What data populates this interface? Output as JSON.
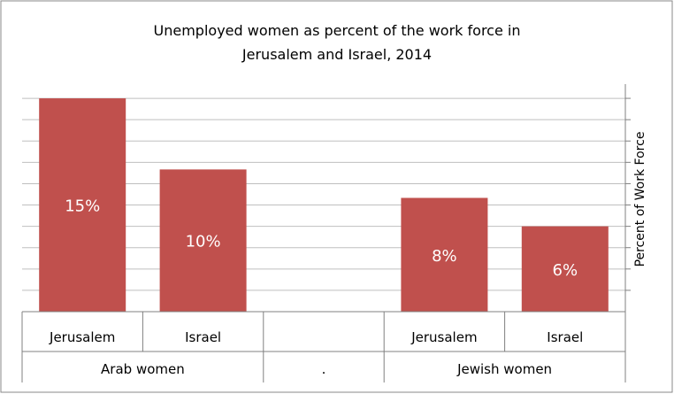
{
  "chart_data": {
    "type": "bar",
    "title_lines": [
      "Unemployed women as percent of the work force in",
      "Jerusalem and Israel, 2014"
    ],
    "ylabel": "Percent of Work Force",
    "ylim": [
      0,
      16
    ],
    "y_tick_step": 1.5,
    "y_axis_side": "right",
    "tick_labels_shown": false,
    "bar_color": "#c0504d",
    "label_color": "#ffffff",
    "bars": [
      {
        "category": "Jerusalem",
        "group": "Arab women",
        "value": 15,
        "label": "15%"
      },
      {
        "category": "Israel",
        "group": "Arab women",
        "value": 10,
        "label": "10%"
      },
      {
        "category": "",
        "group": ".",
        "value": null,
        "label": ""
      },
      {
        "category": "Jerusalem",
        "group": "Jewish women",
        "value": 8,
        "label": "8%"
      },
      {
        "category": "Israel",
        "group": "Jewish women",
        "value": 6,
        "label": "6%"
      }
    ],
    "groups": [
      "Arab women",
      ".",
      "Jewish women"
    ]
  }
}
